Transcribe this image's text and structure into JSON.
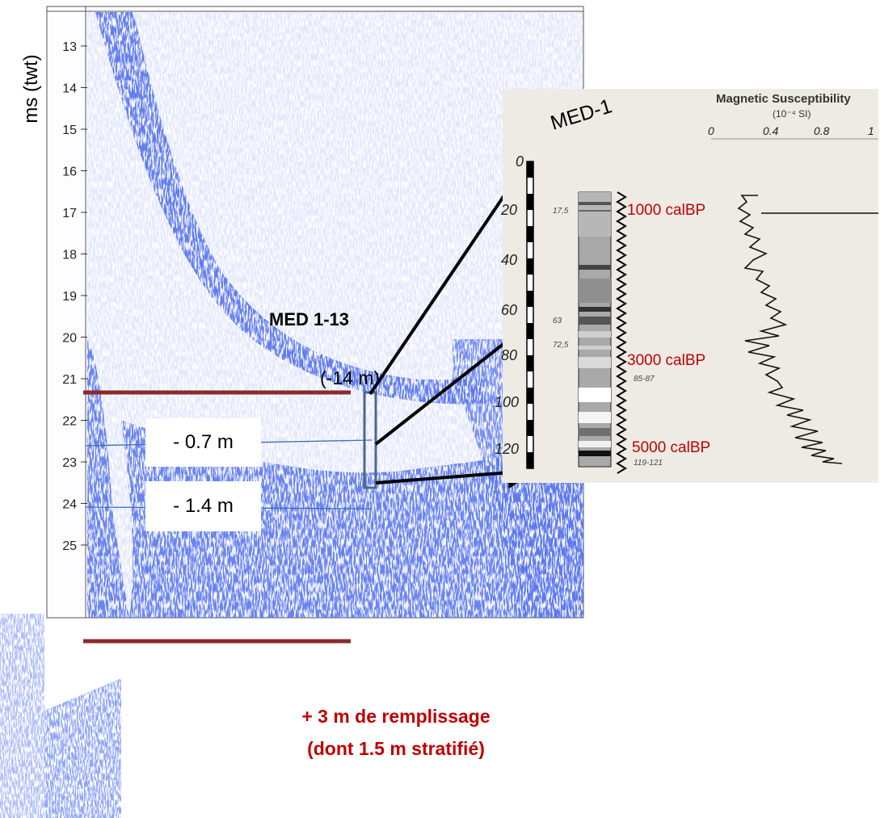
{
  "axis": {
    "title": "ms (twt)",
    "ticks": [
      13,
      14,
      15,
      16,
      17,
      18,
      19,
      20,
      21,
      22,
      23,
      24,
      25
    ]
  },
  "core": {
    "name": "MED 1-13",
    "water_depth": "(-14 m)"
  },
  "depth_labels": {
    "first": "- 0.7 m",
    "second": "- 1.4 m"
  },
  "fill_note": {
    "line1": "+ 3  m de remplissage",
    "line2": "(dont 1.5 m stratifié)"
  },
  "inset": {
    "core_title": "MED-1",
    "depth_ticks": [
      "0",
      "20",
      "40",
      "60",
      "80",
      "100",
      "120"
    ],
    "ms_title": "Magnetic Susceptibility",
    "ms_unit": "(10⁻⁴ SI)",
    "ms_ticks": [
      "0",
      "0.4",
      "0.8",
      "1"
    ],
    "sample_labels": [
      "17,5",
      "63",
      "72,5",
      "85-87",
      "119-121"
    ],
    "ages": [
      "1000 calBP",
      "3000 calBP",
      "5000 calBP"
    ]
  },
  "colors": {
    "seismic": "#1a2fd8",
    "horizon": "#8b2a2a",
    "core_box": "#4a6a8a",
    "age_text": "#c00000",
    "fill_text": "#c00000",
    "panel_bg": "#eeebe4"
  }
}
